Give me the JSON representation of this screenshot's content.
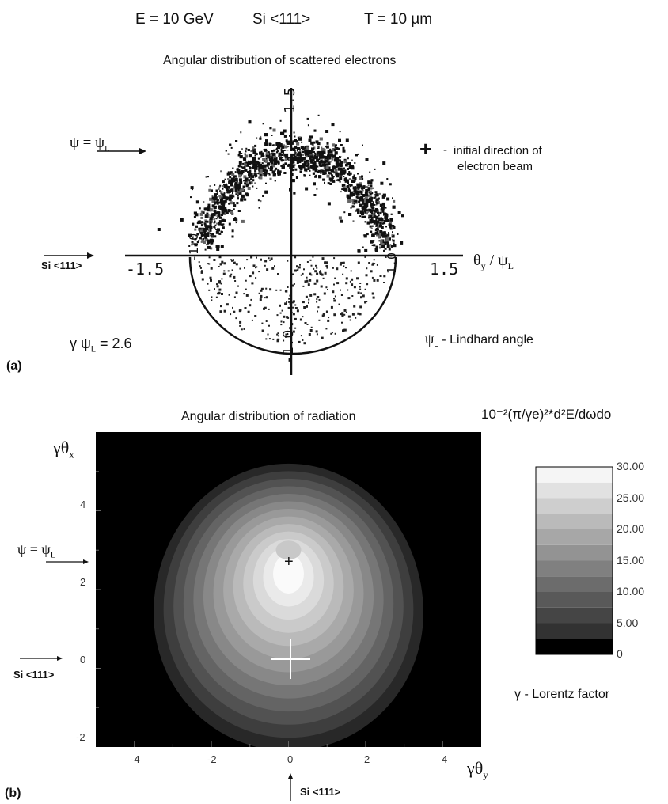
{
  "header": {
    "energy": "E = 10 GeV",
    "crystal": "Si <111>",
    "thickness": "T = 10 µm"
  },
  "panel_a": {
    "label": "(a)",
    "title": "Angular distribution  of scattered electrons",
    "psi_label": "ψ = ψ",
    "psi_sub": "L",
    "si_label": "Si <111>",
    "plus_symbol": "+",
    "initial_dir_line1": "initial direction of",
    "initial_dir_line2": "electron beam",
    "x_axis_label": "θ",
    "x_axis_label_sub": "y",
    "x_axis_label_tail": " / ψ",
    "x_axis_label_tail_sub": "L",
    "ticks": {
      "x_neg": "-1.5",
      "x_pos": "1.5",
      "x_inner_neg": "-1.0",
      "x_inner_pos": "1.0",
      "y_pos": "1.5",
      "y_neg": "-1.0"
    },
    "gamma_psi": "γ ψ",
    "gamma_psi_sub": "L",
    "gamma_psi_value": " = 2.6",
    "lindhard": "ψ",
    "lindhard_sub": "L",
    "lindhard_tail": " - Lindhard angle"
  },
  "panel_b": {
    "label": "(b)",
    "title": "Angular distribution of radiation",
    "colorbar_title": "10⁻²(π/γe)²*d²E/dωdo",
    "y_axis_label": "γθ",
    "y_axis_label_sub": "x",
    "x_axis_label": "γθ",
    "x_axis_label_sub": "y",
    "psi_label": "ψ = ψ",
    "psi_sub": "L",
    "si_left": "Si <111>",
    "si_bottom": "Si <111>",
    "lorentz": "γ - Lorentz factor"
  },
  "chart_data": [
    {
      "type": "scatter",
      "title": "Angular distribution  of scattered electrons",
      "xlabel": "θy / ψL",
      "ylabel": "",
      "xlim": [
        -1.5,
        1.5
      ],
      "ylim": [
        -1.0,
        1.5
      ],
      "x_ticks": [
        "-1.5",
        "-1.0",
        "1.0",
        "1.5"
      ],
      "y_ticks": [
        "1.5",
        "-1.0"
      ],
      "annotations": [
        "ψ = ψL",
        "Si <111>",
        "+ - initial direction of electron beam",
        "γ ψL = 2.6",
        "ψL - Lindhard angle"
      ]
    },
    {
      "type": "heatmap",
      "title": "Angular distribution of radiation",
      "xlabel": "γθy",
      "ylabel": "γθx",
      "xlim": [
        -5,
        5
      ],
      "ylim": [
        -2,
        6
      ],
      "x_ticks": [
        -4,
        -2,
        0,
        2,
        4
      ],
      "y_ticks": [
        -2,
        0,
        2,
        4
      ],
      "colorbar": {
        "title": "10⁻²(π/γe)²*d²E/dωdo",
        "range": [
          0,
          30
        ],
        "tick_labels": [
          "30.00",
          "25.00",
          "20.00",
          "15.00",
          "10.00",
          "5.00",
          "0"
        ],
        "tick_values": [
          30,
          25,
          20,
          15,
          10,
          5,
          0
        ]
      },
      "peak": {
        "x": 0,
        "y": 2.5,
        "value": 27.5
      },
      "markers": [
        {
          "x": 0,
          "y": 2.5,
          "symbol": "+",
          "color": "#000000"
        },
        {
          "x": 0,
          "y": 0,
          "symbol": "+",
          "color": "#ffffff"
        }
      ],
      "colors": {
        "background": "#000000",
        "max": "#f8f8f8"
      }
    }
  ]
}
